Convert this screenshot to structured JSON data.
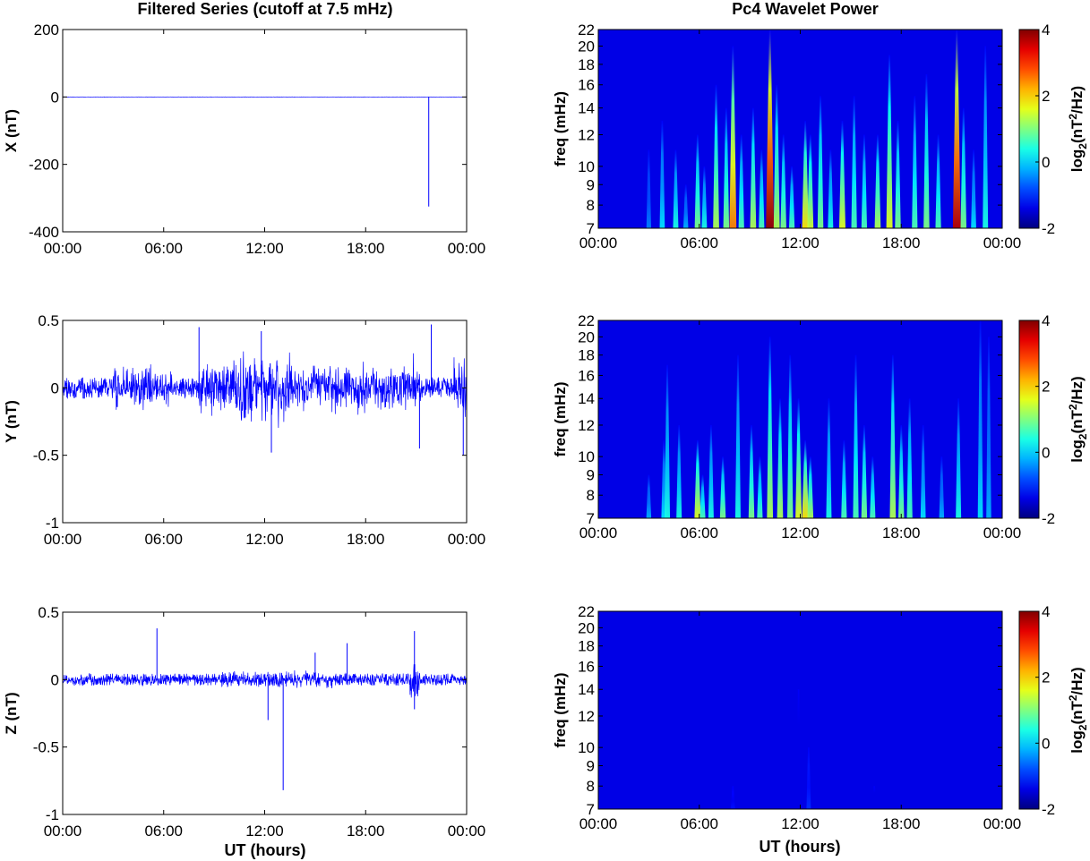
{
  "figure": {
    "left_title": "Filtered Series (cutoff at 7.5 mHz)",
    "right_title": "Pc4 Wavelet Power",
    "xlabel": "UT (hours)"
  },
  "chart_data": [
    {
      "type": "line",
      "component": "X",
      "ylabel": "X (nT)",
      "x_ticks": [
        "00:00",
        "06:00",
        "12:00",
        "18:00",
        "00:00"
      ],
      "x_range_hours": [
        0,
        24
      ],
      "y_ticks": [
        200,
        0,
        -200,
        -400
      ],
      "ylim": [
        -400,
        200
      ],
      "series": [
        {
          "color": "#0000ff",
          "noise_amplitude": 0.3,
          "spikes": [
            {
              "x_hours": 21.75,
              "y": -325
            }
          ]
        }
      ]
    },
    {
      "type": "line",
      "component": "Y",
      "ylabel": "Y (nT)",
      "x_ticks": [
        "00:00",
        "06:00",
        "12:00",
        "18:00",
        "00:00"
      ],
      "x_range_hours": [
        0,
        24
      ],
      "y_ticks": [
        0.5,
        0,
        -0.5,
        -1
      ],
      "ylim": [
        -1,
        0.5
      ],
      "series": [
        {
          "color": "#0000ff",
          "noise_amplitude": 0.08,
          "bursts": [
            {
              "x_hours": [
                3.0,
                6.5
              ],
              "amplitude": 0.18
            },
            {
              "x_hours": [
                8.0,
                10.0
              ],
              "amplitude": 0.22
            },
            {
              "x_hours": [
                10.0,
                13.5
              ],
              "amplitude": 0.32
            },
            {
              "x_hours": [
                13.5,
                16.0
              ],
              "amplitude": 0.2
            },
            {
              "x_hours": [
                16.0,
                18.0
              ],
              "amplitude": 0.22
            },
            {
              "x_hours": [
                18.0,
                20.5
              ],
              "amplitude": 0.2
            },
            {
              "x_hours": [
                20.5,
                21.3
              ],
              "amplitude": 0.26
            },
            {
              "x_hours": [
                23.2,
                24.0
              ],
              "amplitude": 0.26
            }
          ],
          "spikes": [
            {
              "x_hours": 8.1,
              "y": 0.45
            },
            {
              "x_hours": 11.8,
              "y": 0.42
            },
            {
              "x_hours": 12.4,
              "y": -0.48
            },
            {
              "x_hours": 21.2,
              "y": -0.45
            },
            {
              "x_hours": 21.9,
              "y": 0.47
            },
            {
              "x_hours": 23.8,
              "y": -0.5
            }
          ]
        }
      ]
    },
    {
      "type": "line",
      "component": "Z",
      "ylabel": "Z (nT)",
      "x_ticks": [
        "00:00",
        "06:00",
        "12:00",
        "18:00",
        "00:00"
      ],
      "x_range_hours": [
        0,
        24
      ],
      "y_ticks": [
        0.5,
        0,
        -0.5,
        -1
      ],
      "ylim": [
        -1,
        0.5
      ],
      "series": [
        {
          "color": "#0000ff",
          "noise_amplitude": 0.045,
          "bursts": [
            {
              "x_hours": [
                20.6,
                21.2
              ],
              "amplitude": 0.18
            },
            {
              "x_hours": [
                9.0,
                16.0
              ],
              "amplitude": 0.07
            }
          ],
          "spikes": [
            {
              "x_hours": 5.6,
              "y": 0.38
            },
            {
              "x_hours": 12.2,
              "y": -0.3
            },
            {
              "x_hours": 13.1,
              "y": -0.82
            },
            {
              "x_hours": 15.0,
              "y": 0.2
            },
            {
              "x_hours": 16.9,
              "y": 0.27
            },
            {
              "x_hours": 20.9,
              "y": 0.36
            },
            {
              "x_hours": 20.9,
              "y": -0.22
            }
          ]
        }
      ]
    },
    {
      "type": "heatmap",
      "component": "X",
      "ylabel": "freq (mHz)",
      "x_ticks": [
        "00:00",
        "06:00",
        "12:00",
        "18:00",
        "00:00"
      ],
      "x_range_hours": [
        0,
        24
      ],
      "y_ticks": [
        22,
        20,
        18,
        16,
        14,
        12,
        10,
        9,
        8,
        7
      ],
      "ylim_mhz": [
        7,
        22
      ],
      "y_scale": "log",
      "colorbar": {
        "label": "log2(nT2/Hz)",
        "ticks": [
          4,
          2,
          0,
          -2
        ],
        "range": [
          -2,
          4
        ],
        "colormap": "jet"
      },
      "streaks": [
        {
          "t": 3.0,
          "top": 11,
          "peak": 0.25
        },
        {
          "t": 3.8,
          "top": 13,
          "peak": 0.35
        },
        {
          "t": 4.6,
          "top": 11,
          "peak": 0.4
        },
        {
          "t": 5.2,
          "top": 9,
          "peak": 0.3
        },
        {
          "t": 5.9,
          "top": 12,
          "peak": 0.5
        },
        {
          "t": 6.3,
          "top": 10,
          "peak": 0.4
        },
        {
          "t": 7.0,
          "top": 16,
          "peak": 0.55
        },
        {
          "t": 7.6,
          "top": 14,
          "peak": 0.5
        },
        {
          "t": 8.0,
          "top": 20,
          "peak": 0.75
        },
        {
          "t": 8.5,
          "top": 12,
          "peak": 0.45
        },
        {
          "t": 9.2,
          "top": 14,
          "peak": 0.55
        },
        {
          "t": 9.7,
          "top": 11,
          "peak": 0.45
        },
        {
          "t": 10.2,
          "top": 22,
          "peak": 0.98
        },
        {
          "t": 10.6,
          "top": 16,
          "peak": 0.55
        },
        {
          "t": 11.0,
          "top": 12,
          "peak": 0.5
        },
        {
          "t": 11.5,
          "top": 10,
          "peak": 0.45
        },
        {
          "t": 12.3,
          "top": 13,
          "peak": 0.65
        },
        {
          "t": 12.6,
          "top": 12,
          "peak": 0.58
        },
        {
          "t": 13.2,
          "top": 15,
          "peak": 0.5
        },
        {
          "t": 13.8,
          "top": 11,
          "peak": 0.4
        },
        {
          "t": 14.5,
          "top": 13,
          "peak": 0.6
        },
        {
          "t": 15.2,
          "top": 15,
          "peak": 0.45
        },
        {
          "t": 15.8,
          "top": 12,
          "peak": 0.45
        },
        {
          "t": 16.6,
          "top": 12,
          "peak": 0.55
        },
        {
          "t": 17.3,
          "top": 19,
          "peak": 0.6
        },
        {
          "t": 17.8,
          "top": 13,
          "peak": 0.5
        },
        {
          "t": 18.8,
          "top": 15,
          "peak": 0.45
        },
        {
          "t": 19.5,
          "top": 17,
          "peak": 0.5
        },
        {
          "t": 20.2,
          "top": 12,
          "peak": 0.45
        },
        {
          "t": 21.3,
          "top": 22,
          "peak": 0.95
        },
        {
          "t": 21.7,
          "top": 14,
          "peak": 0.5
        },
        {
          "t": 22.3,
          "top": 11,
          "peak": 0.35
        },
        {
          "t": 23.0,
          "top": 20,
          "peak": 0.4
        }
      ]
    },
    {
      "type": "heatmap",
      "component": "Y",
      "ylabel": "freq (mHz)",
      "x_ticks": [
        "00:00",
        "06:00",
        "12:00",
        "18:00",
        "00:00"
      ],
      "x_range_hours": [
        0,
        24
      ],
      "y_ticks": [
        22,
        20,
        18,
        16,
        14,
        12,
        10,
        9,
        8,
        7
      ],
      "ylim_mhz": [
        7,
        22
      ],
      "y_scale": "log",
      "colorbar": {
        "label": "log2(nT2/Hz)",
        "ticks": [
          4,
          2,
          0,
          -2
        ],
        "range": [
          -2,
          4
        ],
        "colormap": "jet"
      },
      "streaks": [
        {
          "t": 3.0,
          "top": 9,
          "peak": 0.3
        },
        {
          "t": 3.9,
          "top": 11,
          "peak": 0.35
        },
        {
          "t": 4.1,
          "top": 17,
          "peak": 0.4
        },
        {
          "t": 4.8,
          "top": 12,
          "peak": 0.4
        },
        {
          "t": 5.9,
          "top": 11,
          "peak": 0.6
        },
        {
          "t": 6.2,
          "top": 9,
          "peak": 0.45
        },
        {
          "t": 6.7,
          "top": 12,
          "peak": 0.4
        },
        {
          "t": 7.4,
          "top": 10,
          "peak": 0.5
        },
        {
          "t": 8.3,
          "top": 18,
          "peak": 0.4
        },
        {
          "t": 9.1,
          "top": 12,
          "peak": 0.5
        },
        {
          "t": 9.6,
          "top": 10,
          "peak": 0.45
        },
        {
          "t": 10.2,
          "top": 20,
          "peak": 0.55
        },
        {
          "t": 10.8,
          "top": 14,
          "peak": 0.55
        },
        {
          "t": 11.4,
          "top": 18,
          "peak": 0.5
        },
        {
          "t": 11.9,
          "top": 14,
          "peak": 0.6
        },
        {
          "t": 12.3,
          "top": 11,
          "peak": 0.65
        },
        {
          "t": 12.6,
          "top": 10,
          "peak": 0.55
        },
        {
          "t": 13.7,
          "top": 14,
          "peak": 0.4
        },
        {
          "t": 14.6,
          "top": 11,
          "peak": 0.45
        },
        {
          "t": 15.3,
          "top": 18,
          "peak": 0.45
        },
        {
          "t": 15.8,
          "top": 12,
          "peak": 0.5
        },
        {
          "t": 16.3,
          "top": 10,
          "peak": 0.45
        },
        {
          "t": 17.5,
          "top": 18,
          "peak": 0.55
        },
        {
          "t": 18.0,
          "top": 12,
          "peak": 0.5
        },
        {
          "t": 18.5,
          "top": 14,
          "peak": 0.45
        },
        {
          "t": 19.3,
          "top": 12,
          "peak": 0.35
        },
        {
          "t": 20.4,
          "top": 10,
          "peak": 0.3
        },
        {
          "t": 21.4,
          "top": 14,
          "peak": 0.4
        },
        {
          "t": 22.7,
          "top": 22,
          "peak": 0.35
        },
        {
          "t": 23.2,
          "top": 20,
          "peak": 0.3
        }
      ]
    },
    {
      "type": "heatmap",
      "component": "Z",
      "ylabel": "freq (mHz)",
      "x_ticks": [
        "00:00",
        "06:00",
        "12:00",
        "18:00",
        "00:00"
      ],
      "x_range_hours": [
        0,
        24
      ],
      "y_ticks": [
        22,
        20,
        18,
        16,
        14,
        12,
        10,
        9,
        8,
        7
      ],
      "ylim_mhz": [
        7,
        22
      ],
      "y_scale": "log",
      "colorbar": {
        "label": "log2(nT2/Hz)",
        "ticks": [
          4,
          2,
          0,
          -2
        ],
        "range": [
          -2,
          4
        ],
        "colormap": "jet"
      },
      "streaks": [
        {
          "t": 8.0,
          "top": 8,
          "peak": 0.14
        },
        {
          "t": 12.5,
          "top": 10,
          "peak": 0.17
        },
        {
          "t": 11.9,
          "top": 14,
          "peak": 0.09
        },
        {
          "t": 16.4,
          "top": 8,
          "peak": 0.08
        }
      ]
    }
  ]
}
